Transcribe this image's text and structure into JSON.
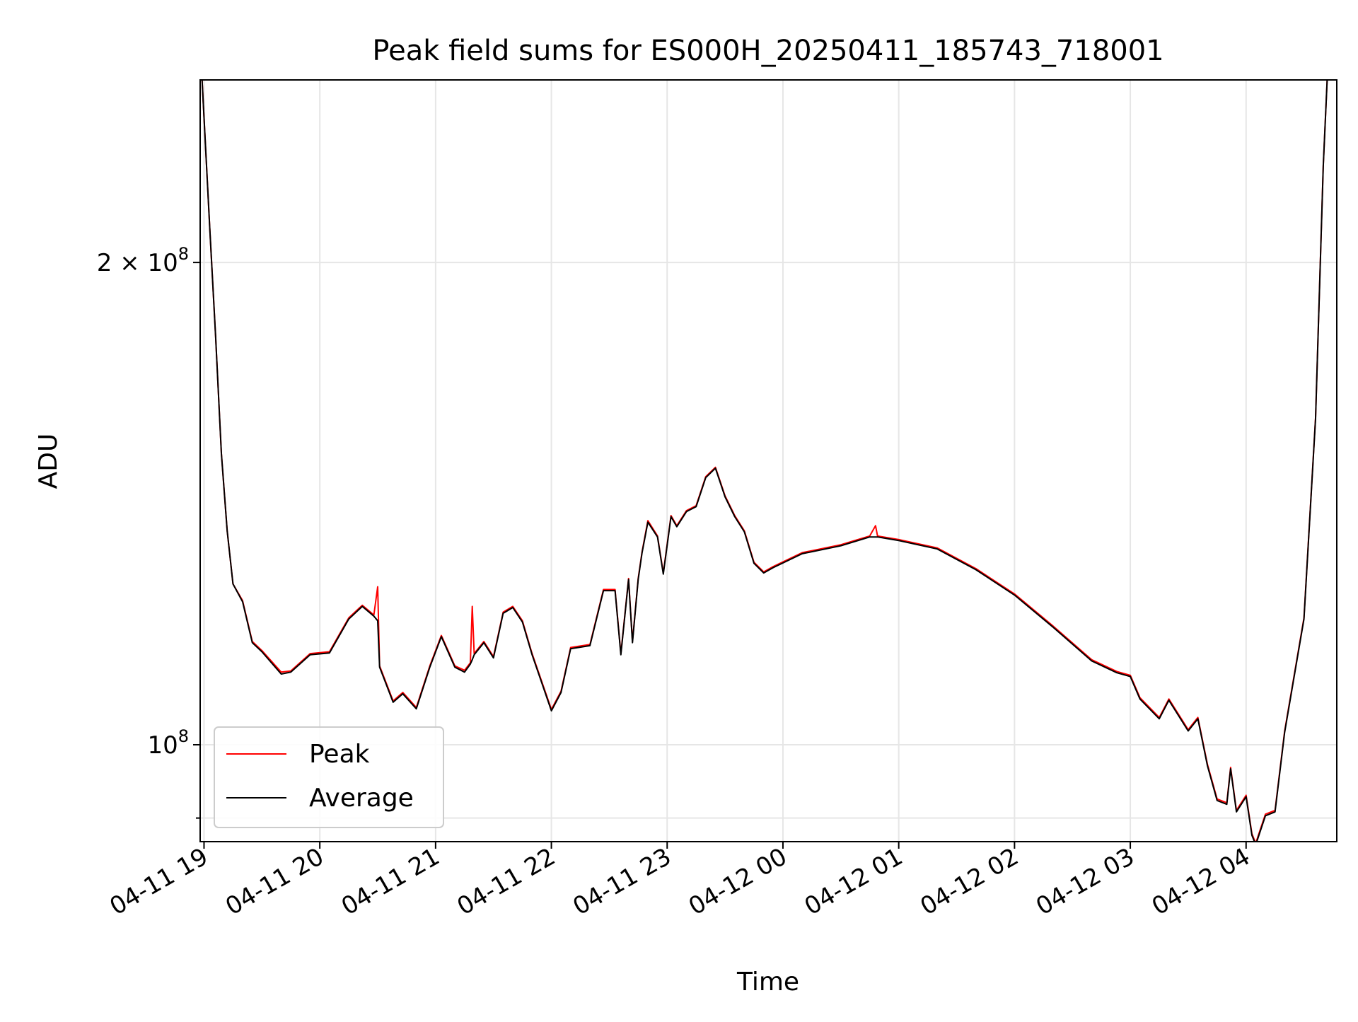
{
  "chart_data": {
    "type": "line",
    "title": "Peak field sums for ES000H_20250411_185743_718001",
    "xlabel": "Time",
    "ylabel": "ADU",
    "yscale": "log",
    "xlim": [
      "2025-04-11 18:58",
      "2025-04-12 04:47"
    ],
    "ylim": [
      87000000,
      260000000
    ],
    "grid": true,
    "legend_position": "lower-left",
    "x_ticks": [
      {
        "t": "2025-04-11 19:00",
        "label": "04-11 19"
      },
      {
        "t": "2025-04-11 20:00",
        "label": "04-11 20"
      },
      {
        "t": "2025-04-11 21:00",
        "label": "04-11 21"
      },
      {
        "t": "2025-04-11 22:00",
        "label": "04-11 22"
      },
      {
        "t": "2025-04-11 23:00",
        "label": "04-11 23"
      },
      {
        "t": "2025-04-12 00:00",
        "label": "04-12 00"
      },
      {
        "t": "2025-04-12 01:00",
        "label": "04-12 01"
      },
      {
        "t": "2025-04-12 02:00",
        "label": "04-12 02"
      },
      {
        "t": "2025-04-12 03:00",
        "label": "04-12 03"
      },
      {
        "t": "2025-04-12 04:00",
        "label": "04-12 04"
      }
    ],
    "y_ticks_major": [
      {
        "value": 100000000,
        "base": "10",
        "exp": "8"
      },
      {
        "value": 200000000,
        "base": "2 × 10",
        "exp": "8"
      }
    ],
    "y_ticks_minor": [
      90000000
    ],
    "series": [
      {
        "name": "Peak",
        "color": "#ff0000",
        "points": [
          [
            "2025-04-11 18:59",
            260000000
          ],
          [
            "2025-04-11 19:03",
            210000000
          ],
          [
            "2025-04-11 19:06",
            180000000
          ],
          [
            "2025-04-11 19:09",
            152000000
          ],
          [
            "2025-04-11 19:12",
            136000000
          ],
          [
            "2025-04-11 19:15",
            126000000
          ],
          [
            "2025-04-11 19:20",
            123000000
          ],
          [
            "2025-04-11 19:25",
            116000000
          ],
          [
            "2025-04-11 19:30",
            114500000
          ],
          [
            "2025-04-11 19:40",
            111000000
          ],
          [
            "2025-04-11 19:45",
            111200000
          ],
          [
            "2025-04-11 19:55",
            114000000
          ],
          [
            "2025-04-11 20:05",
            114300000
          ],
          [
            "2025-04-11 20:15",
            120000000
          ],
          [
            "2025-04-11 20:22",
            122200000
          ],
          [
            "2025-04-11 20:28",
            120500000
          ],
          [
            "2025-04-11 20:30",
            125500000
          ],
          [
            "2025-04-11 20:31",
            112000000
          ],
          [
            "2025-04-11 20:38",
            106500000
          ],
          [
            "2025-04-11 20:43",
            107800000
          ],
          [
            "2025-04-11 20:50",
            105500000
          ],
          [
            "2025-04-11 20:57",
            112000000
          ],
          [
            "2025-04-11 21:03",
            117000000
          ],
          [
            "2025-04-11 21:10",
            112000000
          ],
          [
            "2025-04-11 21:15",
            111300000
          ],
          [
            "2025-04-11 21:18",
            112500000
          ],
          [
            "2025-04-11 21:19",
            122000000
          ],
          [
            "2025-04-11 21:20",
            114000000
          ],
          [
            "2025-04-11 21:25",
            116000000
          ],
          [
            "2025-04-11 21:30",
            113500000
          ],
          [
            "2025-04-11 21:35",
            121000000
          ],
          [
            "2025-04-11 21:40",
            122000000
          ],
          [
            "2025-04-11 21:45",
            119500000
          ],
          [
            "2025-04-11 21:50",
            114000000
          ],
          [
            "2025-04-11 22:00",
            105200000
          ],
          [
            "2025-04-11 22:05",
            108000000
          ],
          [
            "2025-04-11 22:10",
            115000000
          ],
          [
            "2025-04-11 22:20",
            115500000
          ],
          [
            "2025-04-11 22:27",
            125000000
          ],
          [
            "2025-04-11 22:33",
            125000000
          ],
          [
            "2025-04-11 22:36",
            114000000
          ],
          [
            "2025-04-11 22:40",
            127000000
          ],
          [
            "2025-04-11 22:42",
            116000000
          ],
          [
            "2025-04-11 22:45",
            127000000
          ],
          [
            "2025-04-11 22:47",
            132000000
          ],
          [
            "2025-04-11 22:50",
            138000000
          ],
          [
            "2025-04-11 22:55",
            135000000
          ],
          [
            "2025-04-11 22:58",
            128000000
          ],
          [
            "2025-04-11 23:02",
            139000000
          ],
          [
            "2025-04-11 23:05",
            137000000
          ],
          [
            "2025-04-11 23:10",
            140000000
          ],
          [
            "2025-04-11 23:15",
            141000000
          ],
          [
            "2025-04-11 23:20",
            147000000
          ],
          [
            "2025-04-11 23:25",
            149000000
          ],
          [
            "2025-04-11 23:30",
            143000000
          ],
          [
            "2025-04-11 23:35",
            139000000
          ],
          [
            "2025-04-11 23:40",
            136000000
          ],
          [
            "2025-04-11 23:45",
            130000000
          ],
          [
            "2025-04-11 23:50",
            128200000
          ],
          [
            "2025-04-11 23:55",
            129200000
          ],
          [
            "2025-04-12 00:10",
            131800000
          ],
          [
            "2025-04-12 00:30",
            133300000
          ],
          [
            "2025-04-12 00:45",
            135000000
          ],
          [
            "2025-04-12 00:48",
            137000000
          ],
          [
            "2025-04-12 00:49",
            135000000
          ],
          [
            "2025-04-12 01:00",
            134300000
          ],
          [
            "2025-04-12 01:20",
            132700000
          ],
          [
            "2025-04-12 01:40",
            128800000
          ],
          [
            "2025-04-12 02:00",
            124200000
          ],
          [
            "2025-04-12 02:20",
            118600000
          ],
          [
            "2025-04-12 02:40",
            113000000
          ],
          [
            "2025-04-12 02:53",
            111100000
          ],
          [
            "2025-04-12 03:00",
            110500000
          ],
          [
            "2025-04-12 03:05",
            107000000
          ],
          [
            "2025-04-12 03:15",
            104000000
          ],
          [
            "2025-04-12 03:20",
            106800000
          ],
          [
            "2025-04-12 03:30",
            102200000
          ],
          [
            "2025-04-12 03:35",
            104000000
          ],
          [
            "2025-04-12 03:40",
            97200000
          ],
          [
            "2025-04-12 03:45",
            92500000
          ],
          [
            "2025-04-12 03:50",
            92000000
          ],
          [
            "2025-04-12 03:52",
            96800000
          ],
          [
            "2025-04-12 03:55",
            91000000
          ],
          [
            "2025-04-12 04:00",
            93000000
          ],
          [
            "2025-04-12 04:03",
            88000000
          ],
          [
            "2025-04-12 04:05",
            86800000
          ],
          [
            "2025-04-12 04:08",
            89000000
          ],
          [
            "2025-04-12 04:10",
            90500000
          ],
          [
            "2025-04-12 04:15",
            91000000
          ],
          [
            "2025-04-12 04:20",
            102000000
          ],
          [
            "2025-04-12 04:30",
            120000000
          ],
          [
            "2025-04-12 04:36",
            160000000
          ],
          [
            "2025-04-12 04:40",
            230000000
          ],
          [
            "2025-04-12 04:42",
            260000000
          ]
        ]
      },
      {
        "name": "Average",
        "color": "#000000",
        "points": [
          [
            "2025-04-11 18:59",
            260000000
          ],
          [
            "2025-04-11 19:03",
            210000000
          ],
          [
            "2025-04-11 19:06",
            180000000
          ],
          [
            "2025-04-11 19:09",
            152000000
          ],
          [
            "2025-04-11 19:12",
            136000000
          ],
          [
            "2025-04-11 19:15",
            126000000
          ],
          [
            "2025-04-11 19:20",
            122800000
          ],
          [
            "2025-04-11 19:25",
            115800000
          ],
          [
            "2025-04-11 19:30",
            114300000
          ],
          [
            "2025-04-11 19:40",
            110700000
          ],
          [
            "2025-04-11 19:45",
            111000000
          ],
          [
            "2025-04-11 19:55",
            113800000
          ],
          [
            "2025-04-11 20:05",
            114100000
          ],
          [
            "2025-04-11 20:15",
            119800000
          ],
          [
            "2025-04-11 20:22",
            122000000
          ],
          [
            "2025-04-11 20:28",
            120300000
          ],
          [
            "2025-04-11 20:30",
            119500000
          ],
          [
            "2025-04-11 20:31",
            111800000
          ],
          [
            "2025-04-11 20:38",
            106300000
          ],
          [
            "2025-04-11 20:43",
            107600000
          ],
          [
            "2025-04-11 20:50",
            105300000
          ],
          [
            "2025-04-11 20:57",
            111800000
          ],
          [
            "2025-04-11 21:03",
            116800000
          ],
          [
            "2025-04-11 21:10",
            111800000
          ],
          [
            "2025-04-11 21:15",
            111000000
          ],
          [
            "2025-04-11 21:18",
            112300000
          ],
          [
            "2025-04-11 21:19",
            113000000
          ],
          [
            "2025-04-11 21:20",
            113800000
          ],
          [
            "2025-04-11 21:25",
            115800000
          ],
          [
            "2025-04-11 21:30",
            113300000
          ],
          [
            "2025-04-11 21:35",
            120800000
          ],
          [
            "2025-04-11 21:40",
            121800000
          ],
          [
            "2025-04-11 21:45",
            119300000
          ],
          [
            "2025-04-11 21:50",
            113800000
          ],
          [
            "2025-04-11 22:00",
            105000000
          ],
          [
            "2025-04-11 22:05",
            107800000
          ],
          [
            "2025-04-11 22:10",
            114800000
          ],
          [
            "2025-04-11 22:20",
            115300000
          ],
          [
            "2025-04-11 22:27",
            124800000
          ],
          [
            "2025-04-11 22:33",
            124800000
          ],
          [
            "2025-04-11 22:36",
            113800000
          ],
          [
            "2025-04-11 22:40",
            126800000
          ],
          [
            "2025-04-11 22:42",
            115800000
          ],
          [
            "2025-04-11 22:45",
            126800000
          ],
          [
            "2025-04-11 22:47",
            131800000
          ],
          [
            "2025-04-11 22:50",
            137700000
          ],
          [
            "2025-04-11 22:55",
            134800000
          ],
          [
            "2025-04-11 22:58",
            127800000
          ],
          [
            "2025-04-11 23:02",
            138800000
          ],
          [
            "2025-04-11 23:05",
            136800000
          ],
          [
            "2025-04-11 23:10",
            139800000
          ],
          [
            "2025-04-11 23:15",
            140800000
          ],
          [
            "2025-04-11 23:20",
            146800000
          ],
          [
            "2025-04-11 23:25",
            148800000
          ],
          [
            "2025-04-11 23:30",
            142800000
          ],
          [
            "2025-04-11 23:35",
            138800000
          ],
          [
            "2025-04-11 23:40",
            135800000
          ],
          [
            "2025-04-11 23:45",
            129800000
          ],
          [
            "2025-04-11 23:50",
            128000000
          ],
          [
            "2025-04-11 23:55",
            129000000
          ],
          [
            "2025-04-12 00:10",
            131600000
          ],
          [
            "2025-04-12 00:30",
            133100000
          ],
          [
            "2025-04-12 00:45",
            134800000
          ],
          [
            "2025-04-12 00:48",
            134800000
          ],
          [
            "2025-04-12 00:49",
            134800000
          ],
          [
            "2025-04-12 01:00",
            134100000
          ],
          [
            "2025-04-12 01:20",
            132500000
          ],
          [
            "2025-04-12 01:40",
            128600000
          ],
          [
            "2025-04-12 02:00",
            124000000
          ],
          [
            "2025-04-12 02:20",
            118400000
          ],
          [
            "2025-04-12 02:40",
            112800000
          ],
          [
            "2025-04-12 02:53",
            110900000
          ],
          [
            "2025-04-12 03:00",
            110300000
          ],
          [
            "2025-04-12 03:05",
            106800000
          ],
          [
            "2025-04-12 03:15",
            103800000
          ],
          [
            "2025-04-12 03:20",
            106600000
          ],
          [
            "2025-04-12 03:30",
            102000000
          ],
          [
            "2025-04-12 03:35",
            103800000
          ],
          [
            "2025-04-12 03:40",
            97000000
          ],
          [
            "2025-04-12 03:45",
            92300000
          ],
          [
            "2025-04-12 03:50",
            91800000
          ],
          [
            "2025-04-12 03:52",
            96600000
          ],
          [
            "2025-04-12 03:55",
            90800000
          ],
          [
            "2025-04-12 04:00",
            92800000
          ],
          [
            "2025-04-12 04:03",
            87800000
          ],
          [
            "2025-04-12 04:05",
            86600000
          ],
          [
            "2025-04-12 04:08",
            88800000
          ],
          [
            "2025-04-12 04:10",
            90300000
          ],
          [
            "2025-04-12 04:15",
            90800000
          ],
          [
            "2025-04-12 04:20",
            101800000
          ],
          [
            "2025-04-12 04:30",
            119800000
          ],
          [
            "2025-04-12 04:36",
            159800000
          ],
          [
            "2025-04-12 04:40",
            229800000
          ],
          [
            "2025-04-12 04:42",
            260000000
          ]
        ]
      }
    ]
  }
}
